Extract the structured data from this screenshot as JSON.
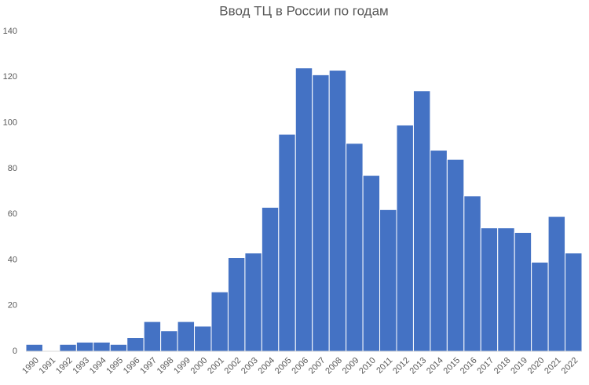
{
  "chart_data": {
    "type": "bar",
    "title": "Ввод ТЦ в России по годам",
    "categories": [
      "1990",
      "1991",
      "1992",
      "1993",
      "1994",
      "1995",
      "1996",
      "1997",
      "1998",
      "1999",
      "2000",
      "2001",
      "2002",
      "2003",
      "2004",
      "2005",
      "2006",
      "2007",
      "2008",
      "2009",
      "2010",
      "2011",
      "2012",
      "2013",
      "2014",
      "2015",
      "2016",
      "2017",
      "2018",
      "2019",
      "2020",
      "2021",
      "2022"
    ],
    "values": [
      3,
      0,
      3,
      4,
      4,
      3,
      6,
      13,
      9,
      13,
      11,
      26,
      41,
      43,
      63,
      95,
      124,
      121,
      123,
      91,
      77,
      62,
      99,
      114,
      88,
      84,
      68,
      54,
      54,
      52,
      39,
      59,
      43
    ],
    "color": "#4472c4",
    "ylim": [
      0,
      140
    ],
    "yticks": [
      0,
      20,
      40,
      60,
      80,
      100,
      120,
      140
    ],
    "grid": false
  }
}
